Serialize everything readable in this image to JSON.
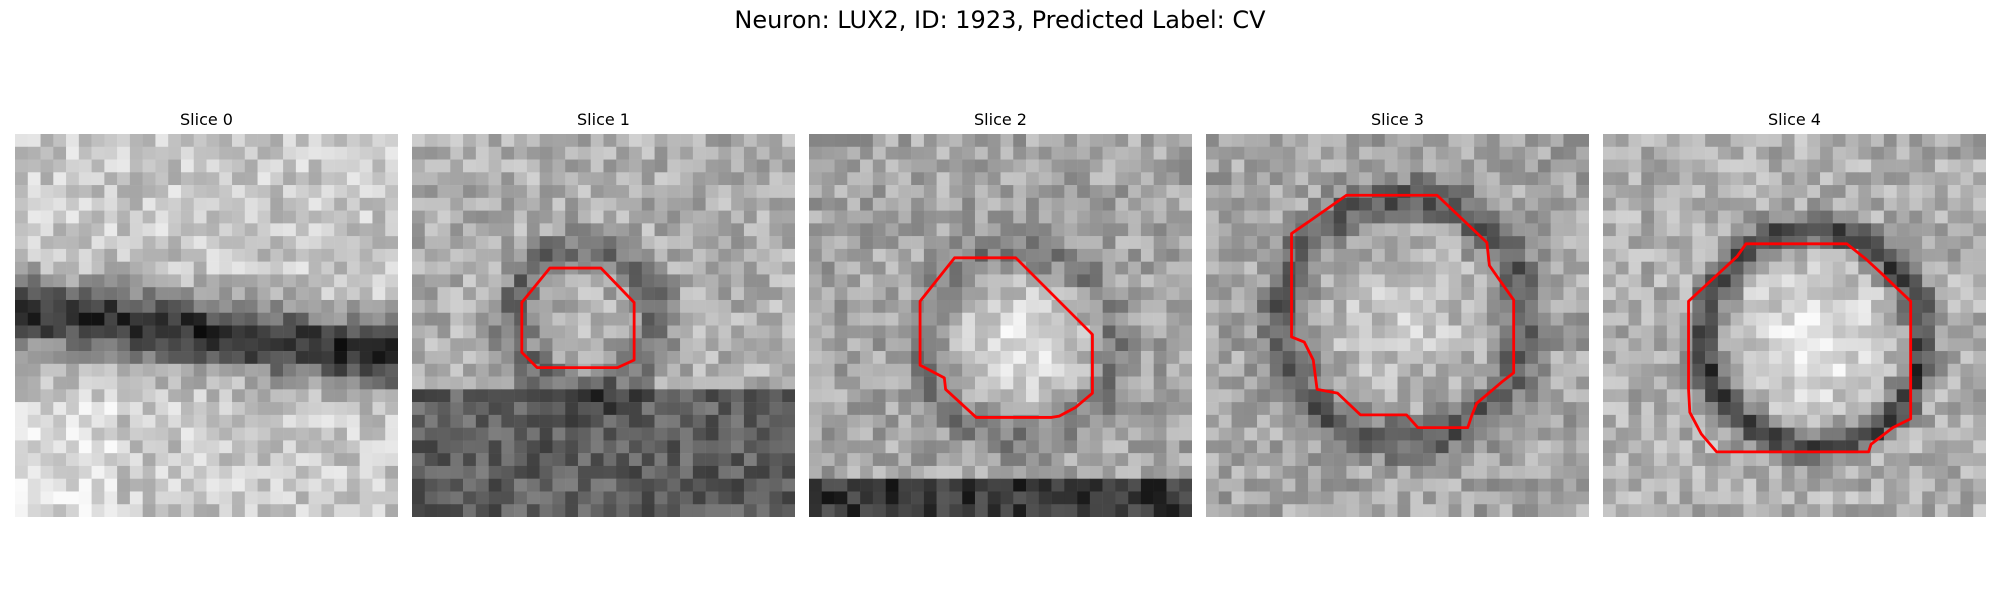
{
  "figure": {
    "title": "Neuron: LUX2, ID: 1923, Predicted Label: CV"
  },
  "panels": [
    {
      "title": "Slice 0",
      "outline": false
    },
    {
      "title": "Slice 1",
      "outline": true
    },
    {
      "title": "Slice 2",
      "outline": true
    },
    {
      "title": "Slice 3",
      "outline": true
    },
    {
      "title": "Slice 4",
      "outline": true
    }
  ],
  "colors": {
    "outline": "#ff0000",
    "background": "#ffffff"
  }
}
